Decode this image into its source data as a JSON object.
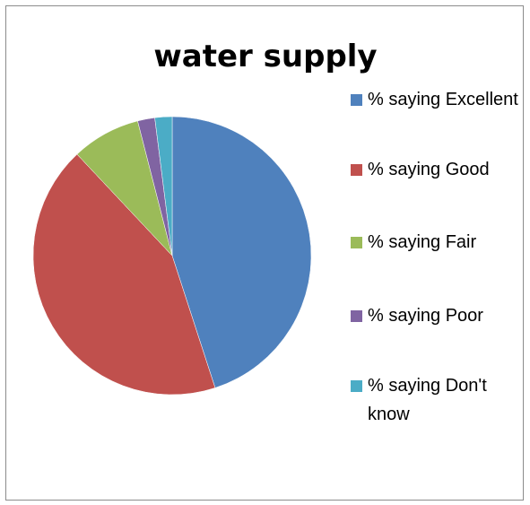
{
  "chart_data": {
    "type": "pie",
    "title": "water supply",
    "categories": [
      "% saying Excellent",
      "% saying Good",
      "% saying Fair",
      "% saying Poor",
      "% saying Don't know"
    ],
    "values": [
      45,
      43,
      8,
      2,
      2
    ],
    "colors": [
      "#4F81BD",
      "#C0504D",
      "#9BBB59",
      "#8064A2",
      "#4BACC6"
    ],
    "start_angle": "12 o'clock",
    "direction": "clockwise",
    "legend": "right"
  }
}
